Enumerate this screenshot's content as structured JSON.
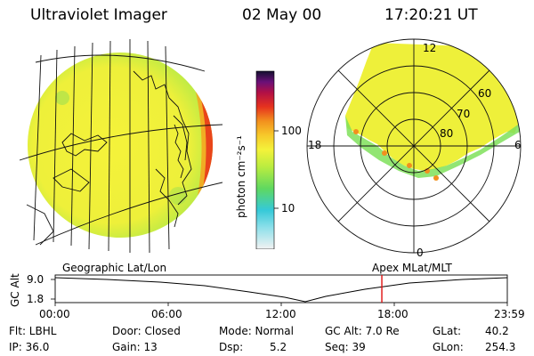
{
  "header": {
    "instrument": "Ultraviolet Imager",
    "date": "02 May 00",
    "time": "17:20:21 UT"
  },
  "colorbar": {
    "unit_label": "photon cm⁻²s⁻¹",
    "tick_100": "100",
    "tick_10": "10"
  },
  "polar": {
    "lat_60": "60",
    "lat_70": "70",
    "lat_80": "80",
    "mlt_12": "12",
    "mlt_18": "18",
    "mlt_6": "6",
    "mlt_0": "0"
  },
  "timeline": {
    "axis_label": "GC Alt",
    "tick_top": "9.0",
    "tick_bottom": "1.8",
    "left_label": "Geographic Lat/Lon",
    "right_label": "Apex MLat/MLT",
    "times": [
      "00:00",
      "06:00",
      "12:00",
      "18:00",
      "23:59"
    ],
    "current_time_fraction": 0.7225
  },
  "status": {
    "flt": "Flt: LBHL",
    "ip": "IP: 36.0",
    "door": "Door: Closed",
    "gain": "Gain: 13",
    "mode": "Mode: Normal",
    "dsp": "Dsp:",
    "dsp_value": "5.2",
    "gc_alt": "GC Alt: 7.0 Re",
    "seq": "Seq: 39",
    "glat": "GLat:",
    "glat_value": "40.2",
    "glon": "GLon:",
    "glon_value": "254.3"
  },
  "colors": {
    "background": "#ffffff",
    "aurora_yellow": "#f2f23a",
    "aurora_green": "#7fe05a",
    "limb_red": "#e83a1a",
    "current_time_marker": "#e01010"
  }
}
